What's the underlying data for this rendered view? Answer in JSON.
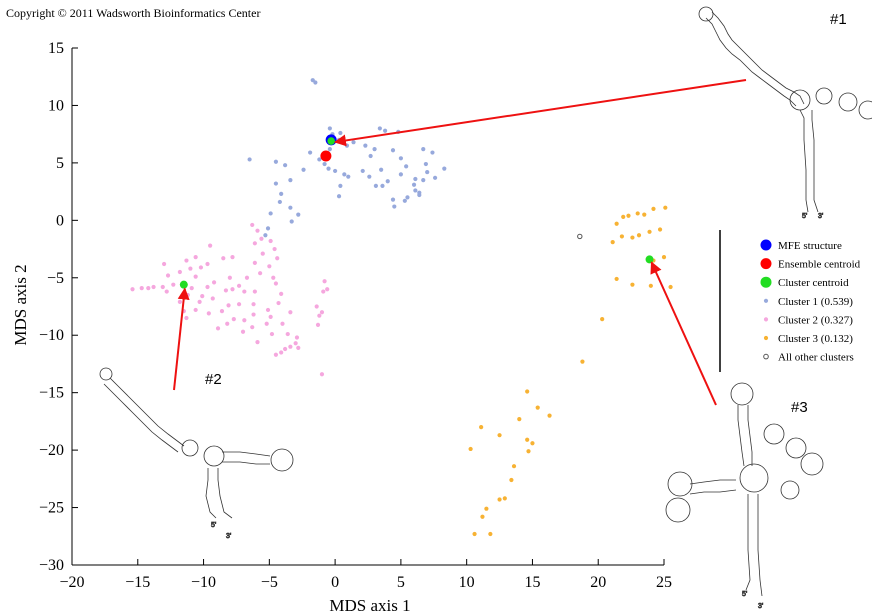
{
  "copyright": "Copyright © 2011 Wadsworth Bioinformatics Center",
  "chart_data": {
    "type": "scatter",
    "title": "",
    "xlabel": "MDS axis 1",
    "ylabel": "MDS axis 2",
    "xlim": [
      -20,
      25
    ],
    "ylim": [
      -30,
      15
    ],
    "xticks": [
      -20,
      -15,
      -10,
      -5,
      0,
      5,
      10,
      15,
      20,
      25
    ],
    "yticks": [
      -30,
      -25,
      -20,
      -15,
      -10,
      -5,
      0,
      5,
      10,
      15
    ],
    "legend_position": "right",
    "series": [
      {
        "key": "cluster1",
        "name": "Cluster 1 (0.539)",
        "color": "#97a9dc",
        "points": [
          [
            -1.7,
            12.2
          ],
          [
            -1.5,
            12.0
          ],
          [
            -6.5,
            5.3
          ],
          [
            -4.5,
            5.1
          ],
          [
            -3.8,
            4.8
          ],
          [
            -3.4,
            3.5
          ],
          [
            -4.5,
            3.2
          ],
          [
            -4.1,
            2.3
          ],
          [
            -4.2,
            1.6
          ],
          [
            -3.4,
            1.1
          ],
          [
            -4.9,
            0.6
          ],
          [
            -2.8,
            0.5
          ],
          [
            -3.3,
            -0.1
          ],
          [
            -5.1,
            -0.7
          ],
          [
            -5.3,
            -1.3
          ],
          [
            -2.4,
            4.4
          ],
          [
            -1.9,
            5.9
          ],
          [
            -1.2,
            5.3
          ],
          [
            -0.8,
            4.9
          ],
          [
            -0.5,
            4.5
          ],
          [
            0.0,
            4.3
          ],
          [
            0.7,
            4.0
          ],
          [
            1.0,
            3.8
          ],
          [
            0.4,
            3.0
          ],
          [
            0.3,
            2.1
          ],
          [
            -0.4,
            6.2
          ],
          [
            -0.2,
            7.5
          ],
          [
            -0.4,
            8.0
          ],
          [
            0.4,
            7.6
          ],
          [
            0.3,
            7.0
          ],
          [
            0.9,
            6.5
          ],
          [
            1.4,
            6.8
          ],
          [
            2.3,
            6.5
          ],
          [
            2.7,
            5.6
          ],
          [
            3.0,
            6.2
          ],
          [
            3.8,
            7.8
          ],
          [
            3.4,
            8.0
          ],
          [
            4.8,
            7.7
          ],
          [
            2.1,
            4.3
          ],
          [
            2.6,
            3.8
          ],
          [
            3.5,
            4.4
          ],
          [
            4.0,
            3.4
          ],
          [
            3.6,
            3.0
          ],
          [
            3.1,
            3.0
          ],
          [
            4.4,
            6.1
          ],
          [
            5.0,
            5.4
          ],
          [
            5.4,
            4.7
          ],
          [
            5.0,
            4.0
          ],
          [
            5.5,
            2.0
          ],
          [
            4.4,
            1.8
          ],
          [
            4.5,
            1.2
          ],
          [
            6.0,
            3.1
          ],
          [
            6.1,
            3.6
          ],
          [
            6.4,
            2.4
          ],
          [
            6.9,
            4.9
          ],
          [
            7.0,
            4.2
          ],
          [
            6.7,
            3.5
          ],
          [
            6.1,
            2.6
          ],
          [
            6.4,
            2.2
          ],
          [
            6.7,
            6.2
          ],
          [
            7.4,
            5.9
          ],
          [
            8.3,
            4.5
          ],
          [
            7.6,
            3.7
          ],
          [
            5.3,
            1.7
          ]
        ]
      },
      {
        "key": "cluster2",
        "name": "Cluster 2 (0.327)",
        "color": "#f5a7de",
        "points": [
          [
            -15.4,
            -6.0
          ],
          [
            -14.7,
            -5.9
          ],
          [
            -14.2,
            -5.9
          ],
          [
            -13.8,
            -5.8
          ],
          [
            -13.1,
            -5.8
          ],
          [
            -12.8,
            -6.2
          ],
          [
            -12.3,
            -5.6
          ],
          [
            -12.7,
            -4.8
          ],
          [
            -11.8,
            -4.5
          ],
          [
            -11.0,
            -4.2
          ],
          [
            -10.6,
            -4.9
          ],
          [
            -10.9,
            -5.9
          ],
          [
            -11.2,
            -6.5
          ],
          [
            -11.8,
            -7.1
          ],
          [
            -11.5,
            -7.9
          ],
          [
            -11.3,
            -8.5
          ],
          [
            -10.6,
            -7.8
          ],
          [
            -10.3,
            -7.1
          ],
          [
            -10.1,
            -6.6
          ],
          [
            -9.7,
            -5.8
          ],
          [
            -9.2,
            -5.4
          ],
          [
            -9.7,
            -3.8
          ],
          [
            -8.5,
            -3.3
          ],
          [
            -7.8,
            -3.2
          ],
          [
            -8.0,
            -5.0
          ],
          [
            -8.3,
            -6.1
          ],
          [
            -7.8,
            -6.0
          ],
          [
            -7.3,
            -5.7
          ],
          [
            -6.9,
            -6.2
          ],
          [
            -6.1,
            -6.2
          ],
          [
            -7.3,
            -7.3
          ],
          [
            -8.1,
            -7.4
          ],
          [
            -8.6,
            -7.9
          ],
          [
            -7.7,
            -8.6
          ],
          [
            -6.9,
            -8.7
          ],
          [
            -6.2,
            -7.3
          ],
          [
            -5.1,
            -7.8
          ],
          [
            -4.9,
            -8.4
          ],
          [
            -5.2,
            -9.0
          ],
          [
            -6.3,
            -9.3
          ],
          [
            -4.8,
            -9.9
          ],
          [
            -5.9,
            -10.6
          ],
          [
            -3.4,
            -8.0
          ],
          [
            -4.0,
            -9.0
          ],
          [
            -3.6,
            -9.9
          ],
          [
            -2.9,
            -10.2
          ],
          [
            -3.0,
            -10.7
          ],
          [
            -3.4,
            -11.0
          ],
          [
            -3.8,
            -11.2
          ],
          [
            -4.1,
            -11.5
          ],
          [
            -4.5,
            -11.7
          ],
          [
            -2.8,
            -11.1
          ],
          [
            -6.7,
            -5.0
          ],
          [
            -5.7,
            -4.6
          ],
          [
            -6.1,
            -3.7
          ],
          [
            -5.5,
            -2.9
          ],
          [
            -5.6,
            -1.6
          ],
          [
            -5.9,
            -0.9
          ],
          [
            -6.3,
            -0.4
          ],
          [
            -4.9,
            -1.8
          ],
          [
            -4.6,
            -2.5
          ],
          [
            -4.4,
            -3.3
          ],
          [
            -6.1,
            -2.0
          ],
          [
            -5.0,
            -4.0
          ],
          [
            -4.7,
            -5.0
          ],
          [
            -4.5,
            -5.5
          ],
          [
            -4.1,
            -6.4
          ],
          [
            -4.3,
            -7.2
          ],
          [
            -9.5,
            -2.2
          ],
          [
            -10.6,
            -3.2
          ],
          [
            -13.0,
            -3.8
          ],
          [
            -11.3,
            -3.5
          ],
          [
            -10.2,
            -4.1
          ],
          [
            -9.3,
            -6.8
          ],
          [
            -9.6,
            -8.1
          ],
          [
            -8.9,
            -9.4
          ],
          [
            -8.2,
            -9.0
          ],
          [
            -7.0,
            -9.7
          ],
          [
            -6.2,
            -8.2
          ],
          [
            -1.0,
            -8.0
          ],
          [
            -1.4,
            -7.5
          ],
          [
            -1.2,
            -8.3
          ],
          [
            -0.9,
            -6.2
          ],
          [
            -0.6,
            -6.0
          ],
          [
            -1.3,
            -9.1
          ],
          [
            -0.8,
            -5.3
          ],
          [
            -1.0,
            -13.4
          ]
        ]
      },
      {
        "key": "cluster3",
        "name": "Cluster 3 (0.132)",
        "color": "#f7b233",
        "points": [
          [
            21.4,
            -0.3
          ],
          [
            21.9,
            0.3
          ],
          [
            22.3,
            0.4
          ],
          [
            23.0,
            0.6
          ],
          [
            23.5,
            0.5
          ],
          [
            24.2,
            1.0
          ],
          [
            25.1,
            1.1
          ],
          [
            21.1,
            -1.9
          ],
          [
            21.8,
            -1.4
          ],
          [
            22.6,
            -1.5
          ],
          [
            23.1,
            -1.3
          ],
          [
            23.9,
            -1.0
          ],
          [
            24.7,
            -0.8
          ],
          [
            24.2,
            -3.5
          ],
          [
            25.0,
            -3.2
          ],
          [
            21.4,
            -5.1
          ],
          [
            22.6,
            -5.6
          ],
          [
            24.0,
            -5.7
          ],
          [
            25.5,
            -5.8
          ],
          [
            20.3,
            -8.6
          ],
          [
            18.8,
            -12.3
          ],
          [
            14.6,
            -14.9
          ],
          [
            15.4,
            -16.3
          ],
          [
            14.0,
            -17.3
          ],
          [
            16.3,
            -17.0
          ],
          [
            11.1,
            -18.0
          ],
          [
            12.5,
            -18.7
          ],
          [
            14.6,
            -19.1
          ],
          [
            15.0,
            -19.4
          ],
          [
            14.7,
            -20.1
          ],
          [
            10.3,
            -19.9
          ],
          [
            13.6,
            -21.4
          ],
          [
            13.4,
            -22.6
          ],
          [
            12.9,
            -24.2
          ],
          [
            12.5,
            -24.3
          ],
          [
            11.5,
            -25.1
          ],
          [
            11.2,
            -25.8
          ],
          [
            11.8,
            -27.3
          ],
          [
            10.6,
            -27.3
          ]
        ]
      },
      {
        "key": "other",
        "name": "All other clusters",
        "color": "#555555",
        "points": [
          [
            18.6,
            -1.4
          ]
        ]
      }
    ],
    "markers": [
      {
        "key": "mfe",
        "name": "MFE structure",
        "color": "#0000ff",
        "x": -0.3,
        "y": 7.0
      },
      {
        "key": "ensemble",
        "name": "Ensemble centroid",
        "color": "#ff0000",
        "x": -0.7,
        "y": 5.6
      },
      {
        "key": "cc1",
        "name": "Cluster centroid",
        "color": "#22dd22",
        "x": -0.3,
        "y": 6.9
      },
      {
        "key": "cc2",
        "name": "",
        "color": "#22dd22",
        "x": -11.5,
        "y": -5.6
      },
      {
        "key": "cc3",
        "name": "",
        "color": "#22dd22",
        "x": 23.9,
        "y": -3.4
      }
    ],
    "legend": [
      {
        "label": "MFE structure",
        "color": "#0000ff",
        "kind": "big"
      },
      {
        "label": "Ensemble centroid",
        "color": "#ff0000",
        "kind": "big"
      },
      {
        "label": "Cluster centroid",
        "color": "#22dd22",
        "kind": "big"
      },
      {
        "label": "Cluster 1 (0.539)",
        "color": "#97a9dc",
        "kind": "small"
      },
      {
        "label": "Cluster 2 (0.327)",
        "color": "#f5a7de",
        "kind": "small"
      },
      {
        "label": "Cluster 3 (0.132)",
        "color": "#f7b233",
        "kind": "small"
      },
      {
        "label": "All other clusters",
        "color": "#555555",
        "kind": "ring"
      }
    ],
    "callouts": [
      {
        "label": "#1",
        "target": "cluster1-centroid"
      },
      {
        "label": "#2",
        "target": "cluster2-centroid"
      },
      {
        "label": "#3",
        "target": "cluster3-centroid"
      }
    ],
    "arrow_color": "#ee1111"
  }
}
